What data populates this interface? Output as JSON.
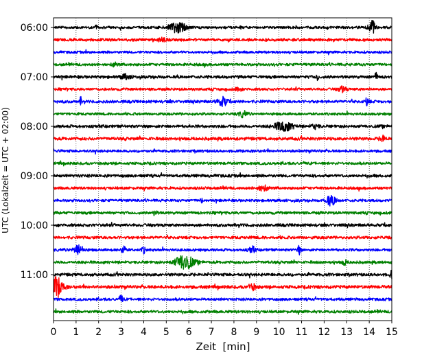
{
  "chart_data": {
    "type": "line",
    "title": "",
    "xlabel": "Zeit  [min]",
    "ylabel": "UTC (Lokalzeit = UTC + 02:00)",
    "xlim": [
      0,
      15
    ],
    "x_ticks": [
      "0",
      "1",
      "2",
      "3",
      "4",
      "5",
      "6",
      "7",
      "8",
      "9",
      "10",
      "11",
      "12",
      "13",
      "14",
      "15"
    ],
    "y_tick_labels": [
      "06:00",
      "07:00",
      "08:00",
      "09:00",
      "10:00",
      "11:00"
    ],
    "grid": "vertical dotted at every minute",
    "trace_start_times": [
      "06:00",
      "06:15",
      "06:30",
      "06:45",
      "07:00",
      "07:15",
      "07:30",
      "07:45",
      "08:00",
      "08:15",
      "08:30",
      "08:45",
      "09:00",
      "09:15",
      "09:30",
      "09:45",
      "10:00",
      "10:15",
      "10:30",
      "10:45",
      "11:00",
      "11:15",
      "11:30",
      "11:45"
    ],
    "trace_color_cycle": [
      "#000000",
      "#ff0000",
      "#0000ff",
      "#008000"
    ],
    "trace_amplitude": [
      2.0,
      2.3,
      2.1,
      2.2,
      2.4,
      2.2,
      2.3,
      2.1,
      2.4,
      2.5,
      2.2,
      2.2,
      2.4,
      2.3,
      2.1,
      2.3,
      2.5,
      2.3,
      2.2,
      2.3,
      2.4,
      2.6,
      2.2,
      2.3
    ],
    "events": [
      {
        "trace": 0,
        "minute": 1.9,
        "amplitude": 5,
        "duration": 0.1
      },
      {
        "trace": 0,
        "minute": 5.5,
        "amplitude": 7,
        "duration": 0.9
      },
      {
        "trace": 0,
        "minute": 14.1,
        "amplitude": 11,
        "duration": 0.35
      },
      {
        "trace": 1,
        "minute": 4.8,
        "amplitude": 2.5,
        "duration": 0.4
      },
      {
        "trace": 3,
        "minute": 2.7,
        "amplitude": 2.5,
        "duration": 0.3
      },
      {
        "trace": 4,
        "minute": 3.2,
        "amplitude": 3,
        "duration": 0.5
      },
      {
        "trace": 4,
        "minute": 11.7,
        "amplitude": 6,
        "duration": 0.1
      },
      {
        "trace": 4,
        "minute": 14.3,
        "amplitude": 5,
        "duration": 0.15
      },
      {
        "trace": 5,
        "minute": 8.2,
        "amplitude": 3,
        "duration": 0.3
      },
      {
        "trace": 5,
        "minute": 12.8,
        "amplitude": 4,
        "duration": 0.4
      },
      {
        "trace": 6,
        "minute": 1.2,
        "amplitude": 6,
        "duration": 0.1
      },
      {
        "trace": 6,
        "minute": 7.5,
        "amplitude": 6,
        "duration": 0.5
      },
      {
        "trace": 6,
        "minute": 13.9,
        "amplitude": 5,
        "duration": 0.2
      },
      {
        "trace": 7,
        "minute": 8.4,
        "amplitude": 4,
        "duration": 0.4
      },
      {
        "trace": 8,
        "minute": 10.2,
        "amplitude": 7,
        "duration": 0.9
      },
      {
        "trace": 8,
        "minute": 11.6,
        "amplitude": 3,
        "duration": 0.4
      },
      {
        "trace": 9,
        "minute": 14.6,
        "amplitude": 4,
        "duration": 0.3
      },
      {
        "trace": 13,
        "minute": 9.3,
        "amplitude": 4,
        "duration": 0.5
      },
      {
        "trace": 14,
        "minute": 6.6,
        "amplitude": 3,
        "duration": 0.2
      },
      {
        "trace": 14,
        "minute": 12.3,
        "amplitude": 7,
        "duration": 0.5
      },
      {
        "trace": 15,
        "minute": 4.5,
        "amplitude": 4,
        "duration": 0.2
      },
      {
        "trace": 18,
        "minute": 1.1,
        "amplitude": 7,
        "duration": 0.5
      },
      {
        "trace": 18,
        "minute": 3.1,
        "amplitude": 7,
        "duration": 0.2
      },
      {
        "trace": 18,
        "minute": 4.0,
        "amplitude": 4,
        "duration": 0.2
      },
      {
        "trace": 18,
        "minute": 8.8,
        "amplitude": 5,
        "duration": 0.3
      },
      {
        "trace": 18,
        "minute": 10.9,
        "amplitude": 6,
        "duration": 0.15
      },
      {
        "trace": 19,
        "minute": 5.8,
        "amplitude": 11,
        "duration": 0.9
      },
      {
        "trace": 19,
        "minute": 12.9,
        "amplitude": 4,
        "duration": 0.2
      },
      {
        "trace": 20,
        "minute": 15.0,
        "amplitude": 5,
        "duration": 0.2
      },
      {
        "trace": 21,
        "minute": 0.15,
        "amplitude": 14,
        "duration": 0.6
      },
      {
        "trace": 21,
        "minute": 8.8,
        "amplitude": 4,
        "duration": 0.4
      },
      {
        "trace": 22,
        "minute": 3.0,
        "amplitude": 5,
        "duration": 0.2
      }
    ]
  }
}
